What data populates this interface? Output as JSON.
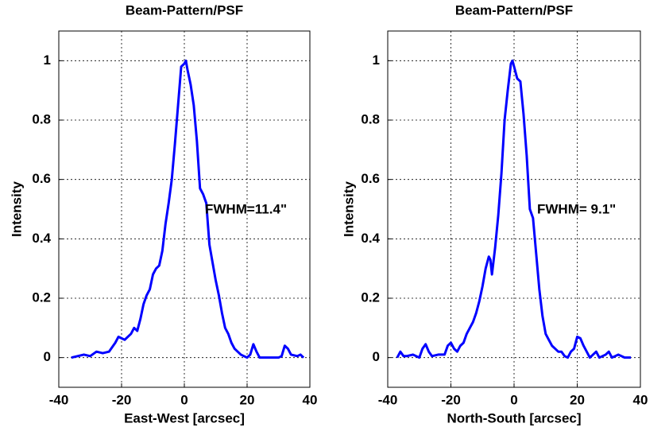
{
  "chart_data": [
    {
      "type": "line",
      "title": "Beam-Pattern/PSF",
      "xlabel": "East-West [arcsec]",
      "ylabel": "Intensity",
      "annotation": "FWHM=11.4\"",
      "x": [
        -36,
        -34,
        -32,
        -30,
        -28,
        -26,
        -24,
        -22,
        -21,
        -19,
        -17,
        -16,
        -15,
        -14,
        -13,
        -12,
        -11,
        -10,
        -9,
        -8,
        -7,
        -6,
        -5,
        -4,
        -3,
        -2,
        -1,
        0,
        0.5,
        1,
        2,
        3,
        4,
        5,
        6,
        7,
        8,
        9,
        10,
        11,
        12,
        13,
        14,
        15,
        16,
        17,
        18,
        19,
        20,
        21,
        22,
        23,
        24,
        26,
        28,
        30,
        31,
        32,
        33,
        34,
        36,
        37,
        38
      ],
      "values": [
        0,
        0.005,
        0.01,
        0.005,
        0.02,
        0.015,
        0.02,
        0.05,
        0.07,
        0.06,
        0.08,
        0.1,
        0.09,
        0.13,
        0.18,
        0.21,
        0.23,
        0.28,
        0.3,
        0.31,
        0.36,
        0.45,
        0.52,
        0.6,
        0.72,
        0.85,
        0.98,
        0.99,
        1.0,
        0.97,
        0.92,
        0.85,
        0.73,
        0.57,
        0.55,
        0.52,
        0.38,
        0.32,
        0.26,
        0.21,
        0.15,
        0.1,
        0.08,
        0.05,
        0.03,
        0.02,
        0.01,
        0.005,
        0,
        0.01,
        0.045,
        0.02,
        0,
        0,
        0,
        0,
        0.005,
        0.04,
        0.03,
        0.01,
        0.005,
        0.01,
        0
      ],
      "color": "#0000ff",
      "xlim": [
        -40,
        40
      ],
      "xticks": [
        -40,
        -20,
        0,
        20,
        40
      ],
      "ylim": [
        -0.1,
        1.1
      ],
      "yticks": [
        0,
        0.2,
        0.4,
        0.6,
        0.8,
        1
      ],
      "grid": true
    },
    {
      "type": "line",
      "title": "Beam-Pattern/PSF",
      "xlabel": "North-South [arcsec]",
      "ylabel": "Intensity",
      "annotation": "FWHM= 9.1\"",
      "x": [
        -37,
        -36,
        -35,
        -34,
        -32,
        -30,
        -29,
        -28,
        -27,
        -26,
        -24,
        -22,
        -21,
        -20,
        -19,
        -18,
        -17,
        -16,
        -15,
        -14,
        -13,
        -12,
        -11,
        -10,
        -9,
        -8,
        -7.5,
        -7,
        -6,
        -5,
        -4,
        -3,
        -2,
        -1,
        -0.5,
        0,
        1,
        2,
        3,
        4,
        5,
        6,
        7,
        8,
        9,
        10,
        11,
        12,
        13,
        14,
        15,
        16,
        17,
        18,
        19,
        20,
        21,
        22,
        23,
        24,
        25,
        26,
        27,
        29,
        30,
        31,
        33,
        35,
        37
      ],
      "values": [
        0,
        0.02,
        0.005,
        0.005,
        0.01,
        0,
        0.03,
        0.045,
        0.02,
        0.005,
        0.01,
        0.01,
        0.04,
        0.05,
        0.03,
        0.02,
        0.04,
        0.05,
        0.08,
        0.1,
        0.12,
        0.15,
        0.19,
        0.24,
        0.3,
        0.34,
        0.33,
        0.28,
        0.37,
        0.48,
        0.62,
        0.8,
        0.9,
        0.99,
        1.0,
        0.98,
        0.94,
        0.93,
        0.82,
        0.68,
        0.5,
        0.47,
        0.35,
        0.23,
        0.14,
        0.08,
        0.06,
        0.04,
        0.03,
        0.02,
        0.02,
        0.005,
        0,
        0.02,
        0.03,
        0.07,
        0.065,
        0.04,
        0.02,
        0,
        0.01,
        0.02,
        0,
        0.01,
        0.02,
        0,
        0.01,
        0,
        0
      ],
      "color": "#0000ff",
      "xlim": [
        -40,
        40
      ],
      "xticks": [
        -40,
        -20,
        0,
        20,
        40
      ],
      "ylim": [
        -0.1,
        1.1
      ],
      "yticks": [
        0,
        0.2,
        0.4,
        0.6,
        0.8,
        1
      ],
      "grid": true
    }
  ]
}
